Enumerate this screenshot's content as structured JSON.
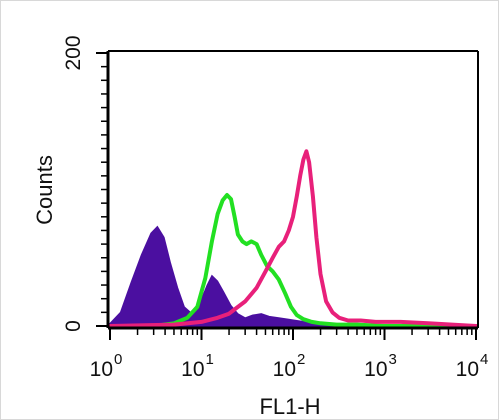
{
  "chart_data": {
    "type": "area",
    "title": "",
    "xlabel": "FL1-H",
    "ylabel": "Counts",
    "x_scale": "log",
    "xlim": [
      1,
      10000
    ],
    "ylim": [
      0,
      200
    ],
    "x_ticks": [
      {
        "value": 1,
        "base": "10",
        "exp": "0"
      },
      {
        "value": 10,
        "base": "10",
        "exp": "1"
      },
      {
        "value": 100,
        "base": "10",
        "exp": "2"
      },
      {
        "value": 1000,
        "base": "10",
        "exp": "3"
      },
      {
        "value": 10000,
        "base": "10",
        "exp": "4"
      }
    ],
    "y_ticks": [
      {
        "value": 0,
        "label": "0"
      },
      {
        "value": 200,
        "label": "200"
      }
    ],
    "grid": false,
    "legend": "none",
    "series": [
      {
        "style": "filled",
        "color": "#4B0FA0",
        "x": [
          1,
          1.3,
          1.7,
          2.2,
          2.8,
          3.3,
          3.9,
          4.6,
          5.5,
          6.5,
          7.6,
          8.8,
          10,
          11.5,
          13,
          15,
          17.5,
          21,
          25,
          30,
          36,
          45,
          55,
          70,
          90,
          110,
          140,
          200,
          400,
          1000,
          10000
        ],
        "y": [
          2,
          10,
          32,
          52,
          68,
          73,
          65,
          46,
          28,
          14,
          10,
          12,
          20,
          30,
          37,
          33,
          25,
          15,
          9,
          6,
          8,
          9,
          7,
          6,
          5,
          4,
          3,
          2,
          1,
          1,
          0
        ]
      },
      {
        "style": "line",
        "color": "#22E022",
        "x": [
          1,
          3,
          5,
          7,
          9,
          11,
          13,
          15,
          17,
          19,
          21,
          23,
          25,
          28,
          31,
          35,
          40,
          45,
          52,
          60,
          70,
          82,
          95,
          110,
          130,
          160,
          200,
          300,
          500,
          1000,
          10000
        ],
        "y": [
          0,
          0,
          2,
          6,
          14,
          35,
          62,
          82,
          92,
          96,
          93,
          80,
          67,
          62,
          60,
          62,
          60,
          52,
          44,
          40,
          34,
          24,
          14,
          8,
          5,
          3,
          2,
          1,
          1,
          0,
          0
        ]
      },
      {
        "style": "line",
        "color": "#E8207A",
        "x": [
          1,
          5,
          10,
          15,
          20,
          25,
          30,
          40,
          50,
          60,
          70,
          80,
          90,
          100,
          110,
          120,
          130,
          140,
          150,
          165,
          180,
          200,
          230,
          270,
          320,
          400,
          550,
          800,
          1500,
          3000,
          10000
        ],
        "y": [
          0,
          1,
          3,
          6,
          9,
          14,
          18,
          28,
          40,
          50,
          58,
          62,
          70,
          80,
          95,
          110,
          122,
          128,
          120,
          95,
          65,
          38,
          18,
          10,
          6,
          4,
          4,
          3,
          3,
          2,
          0
        ]
      }
    ]
  }
}
